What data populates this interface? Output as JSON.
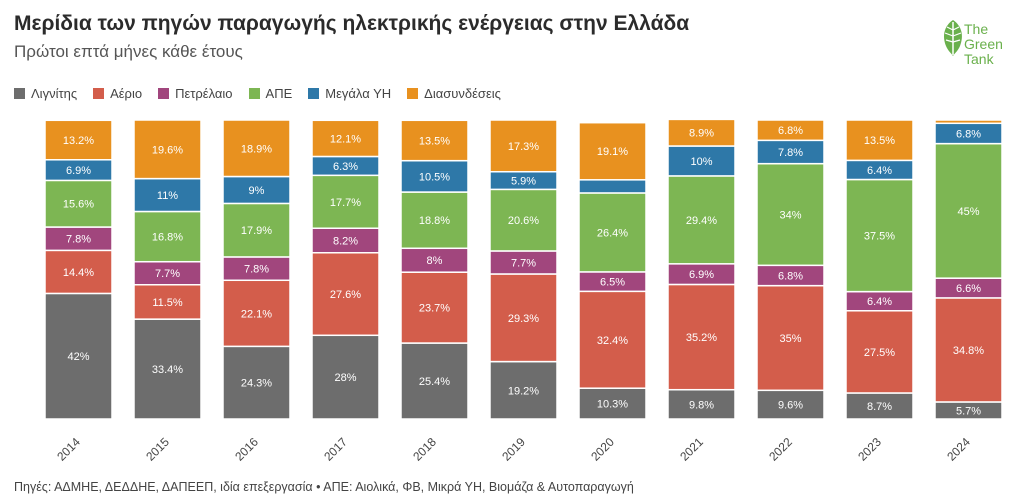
{
  "header": {
    "title": "Μερίδια των πηγών παραγωγής ηλεκτρικής ενέργειας στην Ελλάδα",
    "subtitle": "Πρώτοι επτά μήνες κάθε έτους"
  },
  "logo": {
    "line1": "The",
    "line2": "Green",
    "line3": "Tank",
    "color": "#6ab04c"
  },
  "footer": {
    "source": "Πηγές: ΑΔΜΗΕ, ΔΕΔΔΗΕ, ΔΑΠΕΕΠ, ιδία επεξεργασία • ΑΠΕ: Αιολικά, ΦΒ, Μικρά ΥΗ, Βιομάζα & Αυτοπαραγωγή"
  },
  "chart_data": {
    "type": "bar",
    "stacked": true,
    "categories": [
      "2014",
      "2015",
      "2016",
      "2017",
      "2018",
      "2019",
      "2020",
      "2021",
      "2022",
      "2023",
      "2024"
    ],
    "series": [
      {
        "name": "Λιγνίτης",
        "color": "#6d6d6d",
        "values": [
          42,
          33.4,
          24.3,
          28,
          25.4,
          19.2,
          10.3,
          9.8,
          9.6,
          8.7,
          5.7
        ],
        "labels": [
          "42%",
          "33.4%",
          "24.3%",
          "28%",
          "25.4%",
          "19.2%",
          "10.3%",
          "9.8%",
          "9.6%",
          "8.7%",
          "5.7%"
        ]
      },
      {
        "name": "Αέριο",
        "color": "#d35d4b",
        "values": [
          14.4,
          11.5,
          22.1,
          27.6,
          23.7,
          29.3,
          32.4,
          35.2,
          35,
          27.5,
          34.8
        ],
        "labels": [
          "14.4%",
          "11.5%",
          "22.1%",
          "27.6%",
          "23.7%",
          "29.3%",
          "32.4%",
          "35.2%",
          "35%",
          "27.5%",
          "34.8%"
        ]
      },
      {
        "name": "Πετρέλαιο",
        "color": "#a1467d",
        "values": [
          7.8,
          7.7,
          7.8,
          8.2,
          8,
          7.7,
          6.5,
          6.9,
          6.8,
          6.4,
          6.6
        ],
        "labels": [
          "7.8%",
          "7.7%",
          "7.8%",
          "8.2%",
          "8%",
          "7.7%",
          "6.5%",
          "6.9%",
          "6.8%",
          "6.4%",
          "6.6%"
        ]
      },
      {
        "name": "ΑΠΕ",
        "color": "#7db653",
        "values": [
          15.6,
          16.8,
          17.9,
          17.7,
          18.8,
          20.6,
          26.4,
          29.4,
          34,
          37.5,
          45
        ],
        "labels": [
          "15.6%",
          "16.8%",
          "17.9%",
          "17.7%",
          "18.8%",
          "20.6%",
          "26.4%",
          "29.4%",
          "34%",
          "37.5%",
          "45%"
        ]
      },
      {
        "name": "Μεγάλα ΥΗ",
        "color": "#2e78a8",
        "values": [
          6.9,
          11,
          9,
          6.3,
          10.5,
          5.9,
          4.4,
          10,
          7.8,
          6.4,
          6.8
        ],
        "labels": [
          "6.9%",
          "11%",
          "9%",
          "6.3%",
          "10.5%",
          "5.9%",
          "",
          "10%",
          "7.8%",
          "6.4%",
          "6.8%"
        ]
      },
      {
        "name": "Διασυνδέσεις",
        "color": "#e8911f",
        "values": [
          13.2,
          19.6,
          18.9,
          12.1,
          13.5,
          17.3,
          19.1,
          8.9,
          6.8,
          13.5,
          1.1
        ],
        "labels": [
          "13.2%",
          "19.6%",
          "18.9%",
          "12.1%",
          "13.5%",
          "17.3%",
          "19.1%",
          "8.9%",
          "6.8%",
          "13.5%",
          ""
        ]
      }
    ],
    "ylim": [
      0,
      100
    ],
    "legend_position": "top-left",
    "grid": false
  }
}
